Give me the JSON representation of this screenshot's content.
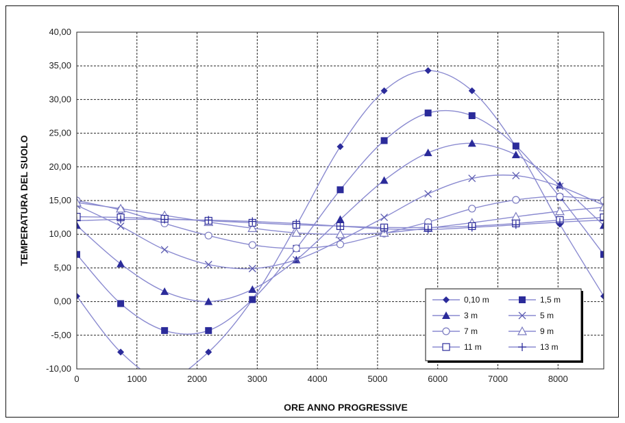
{
  "chart_data": {
    "type": "line",
    "title": "",
    "xlabel": "ORE ANNO PROGRESSIVE",
    "ylabel": "TEMPERATURA DEL SUOLO",
    "xlim": [
      0,
      8760
    ],
    "ylim": [
      -10,
      40
    ],
    "xticks": [
      0,
      1000,
      2000,
      3000,
      4000,
      5000,
      6000,
      7000,
      8000
    ],
    "xtick_labels": [
      "0",
      "1000",
      "2000",
      "3000",
      "4000",
      "5000",
      "6000",
      "7000",
      "8000"
    ],
    "yticks": [
      -10,
      -5,
      0,
      5,
      10,
      15,
      20,
      25,
      30,
      35,
      40
    ],
    "ytick_labels": [
      "-10,00",
      "-5,00",
      "0,00",
      "5,00",
      "10,00",
      "15,00",
      "20,00",
      "25,00",
      "30,00",
      "35,00",
      "40,00"
    ],
    "grid": true,
    "legend_position": "lower-right",
    "line_color": "#8a8ad0",
    "marker_color": "#2b2b9a",
    "x": [
      0,
      730,
      1460,
      2190,
      2920,
      3650,
      4380,
      5110,
      5840,
      6570,
      7300,
      8030,
      8760
    ],
    "series": [
      {
        "name": "0,10 m",
        "marker": "diamond",
        "values": [
          0.8,
          -7.5,
          -11.5,
          -7.5,
          0.3,
          11.3,
          23.0,
          31.3,
          34.3,
          31.3,
          23.0,
          11.5,
          0.8
        ]
      },
      {
        "name": "1,5 m",
        "marker": "square-filled",
        "values": [
          7.0,
          -0.3,
          -4.3,
          -4.3,
          0.3,
          7.9,
          16.6,
          23.9,
          28.0,
          27.6,
          23.1,
          15.5,
          7.0
        ]
      },
      {
        "name": "3 m",
        "marker": "triangle-filled",
        "values": [
          11.3,
          5.6,
          1.5,
          0.0,
          1.8,
          6.2,
          12.2,
          18.0,
          22.1,
          23.5,
          21.8,
          17.3,
          11.3
        ]
      },
      {
        "name": "5 m",
        "marker": "x",
        "values": [
          14.3,
          11.2,
          7.7,
          5.5,
          4.9,
          6.2,
          9.1,
          12.5,
          16.0,
          18.3,
          18.7,
          17.1,
          14.3
        ]
      },
      {
        "name": "7 m",
        "marker": "circle-open",
        "values": [
          15.0,
          13.6,
          11.6,
          9.8,
          8.4,
          7.9,
          8.5,
          10.1,
          11.8,
          13.8,
          15.1,
          15.6,
          15.0
        ]
      },
      {
        "name": "9 m",
        "marker": "triangle-open",
        "values": [
          14.7,
          13.8,
          12.8,
          11.8,
          10.9,
          10.2,
          10.0,
          10.2,
          10.9,
          11.7,
          12.6,
          13.4,
          14.0
        ]
      },
      {
        "name": "11 m",
        "marker": "square-open",
        "values": [
          12.6,
          12.5,
          12.3,
          12.0,
          11.7,
          11.4,
          11.2,
          11.0,
          11.0,
          11.2,
          11.6,
          12.1,
          12.5
        ]
      },
      {
        "name": "13 m",
        "marker": "plus",
        "values": [
          12.0,
          12.2,
          12.2,
          12.1,
          11.9,
          11.6,
          11.2,
          10.8,
          10.7,
          11.0,
          11.4,
          11.8,
          12.1
        ]
      }
    ]
  }
}
